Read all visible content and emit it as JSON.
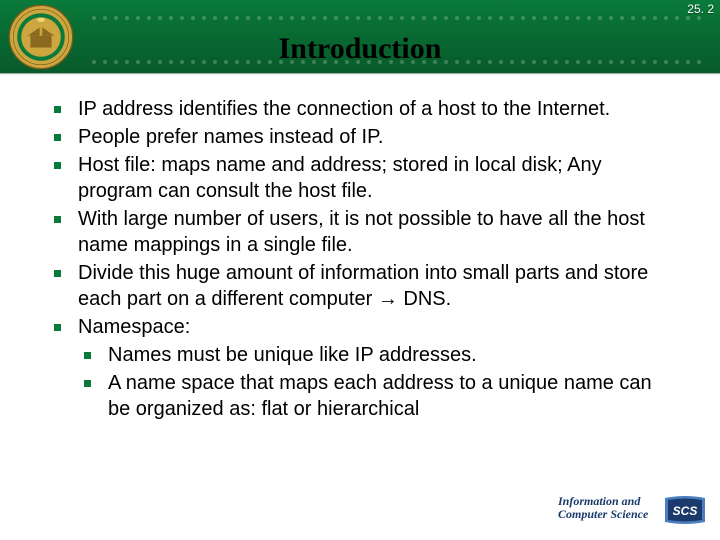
{
  "colors": {
    "header_gradient_top": "#0a7a3a",
    "header_gradient_mid": "#096b32",
    "header_gradient_bottom": "#075a2a",
    "bullet_color": "#0a7a3a",
    "text_color": "#000000",
    "page_number_color": "#ffffff",
    "seal_gold": "#cda640",
    "seal_green": "#0a7a3a",
    "logo_blue_dark": "#1b3a6b",
    "logo_blue_light": "#4a7fbf",
    "logo_text_color": "#1b3a6b"
  },
  "typography": {
    "title_font": "Times New Roman",
    "title_size_pt": 22,
    "body_font": "Tahoma",
    "body_size_pt": 15
  },
  "page_number": "25. 2",
  "title": "Introduction",
  "bullets": [
    {
      "text": "IP address identifies the connection of a host to the Internet."
    },
    {
      "text": "People prefer names instead of IP."
    },
    {
      "text": "Host file: maps name and address; stored in local disk; Any program can consult the host file."
    },
    {
      "text": "With large number of users, it is not possible to have all the host name mappings in a single file."
    },
    {
      "text": "Divide this huge amount of information into small parts and store each part on a different computer → DNS."
    },
    {
      "text": "Namespace:",
      "children": [
        {
          "text": "Names must be unique like IP addresses."
        },
        {
          "text": "A name space that maps each address to a unique name can be organized as: flat or hierarchical"
        }
      ]
    }
  ],
  "footer_logo": {
    "line1": "Information and",
    "line2": "Computer Science",
    "badge": "SCS"
  },
  "seal": {
    "name": "university-seal"
  }
}
